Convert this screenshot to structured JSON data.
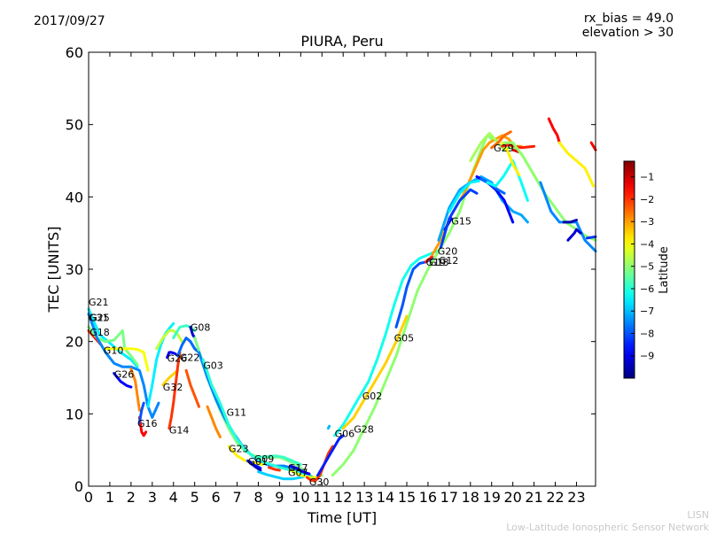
{
  "header": {
    "date": "2017/09/27",
    "rx_bias": "rx_bias = 49.0",
    "elevation": "elevation > 30"
  },
  "footer": {
    "credit_line1": "LISN",
    "credit_line2": "Low-Latitude Ionospheric Sensor Network"
  },
  "chart_data": {
    "type": "scatter",
    "title": "PIURA, Peru",
    "xlabel": "Time [UT]",
    "ylabel": "TEC [UNITS]",
    "xlim": [
      0,
      23.9
    ],
    "ylim": [
      0,
      60
    ],
    "xticks": [
      0,
      1,
      2,
      3,
      4,
      5,
      6,
      7,
      8,
      9,
      10,
      11,
      12,
      13,
      14,
      15,
      16,
      17,
      18,
      19,
      20,
      21,
      22,
      23
    ],
    "yticks": [
      0,
      10,
      20,
      30,
      40,
      50,
      60
    ],
    "colorbar": {
      "label": "Latitude",
      "range": [
        -10,
        -0.3
      ],
      "ticks": [
        -9,
        -8,
        -7,
        -6,
        -5,
        -4,
        -3,
        -2,
        -1
      ],
      "colormap": [
        "#00007f",
        "#0000ff",
        "#007fff",
        "#00ffff",
        "#7fff7f",
        "#ffff00",
        "#ff7f00",
        "#ff0000",
        "#7f0000"
      ]
    },
    "satellite_labels": [
      {
        "name": "G21",
        "x": 0.0,
        "y": 25.5
      },
      {
        "name": "G31",
        "x": 0.0,
        "y": 23.3
      },
      {
        "name": "G25",
        "x": 0.05,
        "y": 23.3
      },
      {
        "name": "G18",
        "x": 0.05,
        "y": 21.3
      },
      {
        "name": "G10",
        "x": 0.7,
        "y": 18.8
      },
      {
        "name": "G26",
        "x": 1.2,
        "y": 15.5
      },
      {
        "name": "G16",
        "x": 2.3,
        "y": 8.7
      },
      {
        "name": "G32",
        "x": 3.5,
        "y": 13.7
      },
      {
        "name": "G14",
        "x": 3.8,
        "y": 7.8
      },
      {
        "name": "G26",
        "x": 3.7,
        "y": 17.7
      },
      {
        "name": "G22",
        "x": 4.3,
        "y": 17.8
      },
      {
        "name": "G08",
        "x": 4.8,
        "y": 22.0
      },
      {
        "name": "G03",
        "x": 5.4,
        "y": 16.7
      },
      {
        "name": "G11",
        "x": 6.5,
        "y": 10.2
      },
      {
        "name": "G23",
        "x": 6.6,
        "y": 5.2
      },
      {
        "name": "G01",
        "x": 7.5,
        "y": 3.4
      },
      {
        "name": "G09",
        "x": 7.8,
        "y": 3.8
      },
      {
        "name": "G17",
        "x": 9.4,
        "y": 2.6
      },
      {
        "name": "G07",
        "x": 9.4,
        "y": 1.9
      },
      {
        "name": "G30",
        "x": 10.4,
        "y": 0.6
      },
      {
        "name": "G06",
        "x": 11.6,
        "y": 7.3
      },
      {
        "name": "G28",
        "x": 12.5,
        "y": 7.9
      },
      {
        "name": "G02",
        "x": 12.9,
        "y": 12.5
      },
      {
        "name": "G05",
        "x": 14.4,
        "y": 20.5
      },
      {
        "name": "G19",
        "x": 15.9,
        "y": 31.0
      },
      {
        "name": "G13",
        "x": 16.05,
        "y": 31.0
      },
      {
        "name": "G12",
        "x": 16.5,
        "y": 31.2
      },
      {
        "name": "G20",
        "x": 16.45,
        "y": 32.5
      },
      {
        "name": "G15",
        "x": 17.1,
        "y": 36.7
      },
      {
        "name": "G29",
        "x": 19.1,
        "y": 46.8
      }
    ],
    "series": [
      {
        "lat": -6.5,
        "x": [
          0.0,
          0.5,
          1.0,
          1.5,
          2.0,
          2.3
        ],
        "y": [
          24.5,
          21.0,
          19.8,
          18.5,
          17.5,
          16.5
        ]
      },
      {
        "lat": -1.8,
        "x": [
          0.0,
          0.3,
          0.6
        ],
        "y": [
          21.5,
          20.5,
          19.5
        ]
      },
      {
        "lat": -5.2,
        "x": [
          0.0,
          0.4,
          0.8,
          1.2,
          1.6,
          1.7,
          2.0,
          2.3
        ],
        "y": [
          22.0,
          20.5,
          20.0,
          20.2,
          21.5,
          19.0,
          18.0,
          16.8
        ]
      },
      {
        "lat": -7.5,
        "x": [
          0.0,
          0.4,
          0.8,
          1.2,
          1.6,
          2.0,
          2.4,
          2.6,
          2.8,
          3.0,
          3.3
        ],
        "y": [
          23.8,
          20.5,
          18.5,
          17.0,
          16.5,
          16.5,
          16.0,
          14.0,
          11.0,
          9.5,
          11.5
        ]
      },
      {
        "lat": -8.8,
        "x": [
          1.2,
          1.5,
          1.8,
          2.0
        ],
        "y": [
          15.6,
          14.5,
          13.9,
          13.7
        ]
      },
      {
        "lat": -4.0,
        "x": [
          0.8,
          1.2,
          1.6,
          2.0,
          2.3,
          2.6,
          2.8
        ],
        "y": [
          19.0,
          19.0,
          19.0,
          19.0,
          18.9,
          18.5,
          16.0
        ]
      },
      {
        "lat": -2.8,
        "x": [
          2.0,
          2.2,
          2.4
        ],
        "y": [
          16.2,
          14.5,
          10.5
        ]
      },
      {
        "lat": -1.5,
        "x": [
          2.4,
          2.5,
          2.6,
          2.7
        ],
        "y": [
          9.5,
          7.5,
          7.0,
          7.5
        ]
      },
      {
        "lat": -8.0,
        "x": [
          2.4,
          2.5,
          2.6
        ],
        "y": [
          8.8,
          10.5,
          11.5
        ]
      },
      {
        "lat": -6.5,
        "x": [
          2.8,
          3.0,
          3.2,
          3.4,
          3.6,
          3.8,
          4.0
        ],
        "y": [
          11.0,
          14.0,
          17.5,
          19.5,
          21.0,
          21.8,
          22.5
        ]
      },
      {
        "lat": -3.5,
        "x": [
          3.5,
          3.8,
          4.0,
          4.2
        ],
        "y": [
          14.0,
          15.0,
          15.5,
          16.0
        ]
      },
      {
        "lat": -2.0,
        "x": [
          3.8,
          3.9,
          4.0,
          4.1,
          4.2,
          4.3
        ],
        "y": [
          8.0,
          9.5,
          11.5,
          14.0,
          16.5,
          18.5
        ]
      },
      {
        "lat": -9.0,
        "x": [
          3.7,
          3.8,
          3.9,
          4.0,
          4.1
        ],
        "y": [
          17.8,
          18.5,
          18.5,
          18.4,
          18.3
        ]
      },
      {
        "lat": -4.5,
        "x": [
          3.2,
          3.5,
          3.8,
          4.0,
          4.2,
          4.4
        ],
        "y": [
          19.0,
          20.5,
          21.5,
          21.5,
          21.0,
          20.0
        ]
      },
      {
        "lat": -5.8,
        "x": [
          4.0,
          4.3,
          4.6,
          4.8,
          5.0
        ],
        "y": [
          20.5,
          22.0,
          22.2,
          22.0,
          21.5
        ]
      },
      {
        "lat": -7.8,
        "x": [
          4.2,
          4.4,
          4.6,
          4.8,
          5.0,
          5.2
        ],
        "y": [
          18.0,
          19.5,
          20.5,
          20.0,
          19.0,
          18.5
        ]
      },
      {
        "lat": -2.3,
        "x": [
          4.6,
          4.8,
          5.0,
          5.2
        ],
        "y": [
          16.0,
          14.0,
          12.5,
          11.0
        ]
      },
      {
        "lat": -9.2,
        "x": [
          4.8,
          4.9,
          5.0
        ],
        "y": [
          22.0,
          21.0,
          20.5
        ]
      },
      {
        "lat": -5.2,
        "x": [
          5.0,
          5.4,
          5.8,
          6.2,
          6.6,
          7.0,
          7.4,
          7.8,
          8.2,
          8.6,
          9.0,
          9.4,
          9.8,
          10.2,
          10.6,
          11.0
        ],
        "y": [
          20.5,
          17.0,
          13.5,
          10.5,
          8.0,
          6.0,
          4.8,
          4.2,
          4.0,
          4.0,
          4.0,
          3.5,
          3.0,
          2.0,
          1.2,
          1.5
        ]
      },
      {
        "lat": -7.5,
        "x": [
          5.2,
          5.6,
          6.0,
          6.4,
          6.8,
          7.2,
          7.6,
          8.0,
          8.4,
          8.8,
          9.2,
          9.6,
          10.0,
          10.4,
          10.8
        ],
        "y": [
          18.5,
          15.0,
          12.0,
          9.5,
          7.5,
          5.8,
          4.5,
          3.5,
          3.0,
          2.8,
          2.8,
          2.5,
          2.0,
          1.4,
          1.0
        ]
      },
      {
        "lat": -6.0,
        "x": [
          5.4,
          5.8,
          6.2,
          6.6,
          7.0,
          7.4,
          7.8,
          8.2,
          8.6,
          9.0,
          9.4,
          9.8,
          10.2
        ],
        "y": [
          17.5,
          14.0,
          11.5,
          8.5,
          6.5,
          5.0,
          4.0,
          3.4,
          3.0,
          2.6,
          2.3,
          2.0,
          1.5
        ]
      },
      {
        "lat": -2.8,
        "x": [
          5.6,
          5.8,
          6.0,
          6.2
        ],
        "y": [
          11.0,
          9.5,
          8.0,
          6.8
        ]
      },
      {
        "lat": -3.8,
        "x": [
          6.6,
          7.0,
          7.4,
          7.8,
          8.2
        ],
        "y": [
          5.5,
          4.2,
          3.5,
          3.2,
          3.0
        ]
      },
      {
        "lat": -8.5,
        "x": [
          7.5,
          7.7,
          7.9,
          8.1
        ],
        "y": [
          3.5,
          3.0,
          2.8,
          2.5
        ]
      },
      {
        "lat": -9.3,
        "x": [
          7.6,
          7.8,
          8.0,
          8.1
        ],
        "y": [
          3.4,
          2.8,
          2.4,
          2.2
        ]
      },
      {
        "lat": -5.8,
        "x": [
          8.0,
          8.4,
          8.8,
          9.2,
          9.6,
          10.0
        ],
        "y": [
          4.0,
          4.1,
          4.2,
          4.0,
          3.5,
          3.0
        ]
      },
      {
        "lat": -6.8,
        "x": [
          8.0,
          8.4,
          8.8,
          9.2,
          9.6,
          10.0,
          10.4
        ],
        "y": [
          2.0,
          1.6,
          1.3,
          1.0,
          1.0,
          1.2,
          1.5
        ]
      },
      {
        "lat": -2.0,
        "x": [
          8.5,
          8.8,
          9.0
        ],
        "y": [
          2.6,
          2.3,
          2.2
        ]
      },
      {
        "lat": -9.0,
        "x": [
          9.5,
          9.8,
          10.1,
          10.4
        ],
        "y": [
          2.8,
          2.5,
          2.0,
          1.7
        ]
      },
      {
        "lat": -4.2,
        "x": [
          9.5,
          10.0,
          10.5,
          10.8
        ],
        "y": [
          2.2,
          1.5,
          1.2,
          1.3
        ]
      },
      {
        "lat": -2.0,
        "x": [
          10.3,
          10.5,
          10.7,
          10.9,
          11.1,
          11.3,
          11.5
        ],
        "y": [
          1.2,
          0.8,
          0.8,
          1.5,
          3.0,
          4.5,
          5.5
        ]
      },
      {
        "lat": -8.5,
        "x": [
          10.8,
          11.0,
          11.2,
          11.4,
          11.6,
          11.8,
          12.0
        ],
        "y": [
          1.5,
          2.5,
          3.5,
          4.5,
          5.5,
          6.5,
          7.0
        ]
      },
      {
        "lat": -7.0,
        "x": [
          11.3,
          11.35
        ],
        "y": [
          8.0,
          8.3
        ]
      },
      {
        "lat": -6.2,
        "x": [
          11.6,
          12.0,
          12.4,
          12.8,
          13.2,
          13.6,
          14.0,
          14.4,
          14.8,
          15.2,
          15.6,
          16.0,
          16.4
        ],
        "y": [
          7.0,
          8.5,
          10.5,
          12.5,
          14.5,
          17.5,
          21.0,
          25.0,
          28.5,
          30.5,
          31.5,
          32.0,
          32.5
        ]
      },
      {
        "lat": -5.0,
        "x": [
          11.5,
          12.0,
          12.5,
          13.0,
          13.5,
          14.0,
          14.5,
          15.0,
          15.5,
          16.0,
          16.5,
          17.0,
          17.5,
          18.0,
          18.5,
          18.8,
          19.0
        ],
        "y": [
          1.5,
          3.0,
          5.0,
          8.0,
          11.0,
          14.5,
          18.0,
          22.5,
          27.0,
          30.0,
          32.5,
          35.0,
          38.0,
          42.5,
          46.5,
          48.5,
          48.0
        ]
      },
      {
        "lat": -3.5,
        "x": [
          12.0,
          12.5,
          13.0,
          13.5,
          14.0,
          14.5,
          15.0
        ],
        "y": [
          8.0,
          9.5,
          12.0,
          14.5,
          17.0,
          20.0,
          23.5
        ]
      },
      {
        "lat": -8.0,
        "x": [
          14.5,
          14.8,
          15.0,
          15.3,
          15.6,
          15.9,
          16.2
        ],
        "y": [
          22.0,
          25.0,
          27.5,
          30.0,
          30.8,
          31.0,
          31.5
        ]
      },
      {
        "lat": -1.8,
        "x": [
          15.9,
          16.0,
          16.1,
          16.2
        ],
        "y": [
          31.0,
          31.3,
          31.5,
          31.8
        ]
      },
      {
        "lat": -3.0,
        "x": [
          16.2,
          16.5,
          16.8,
          17.1,
          17.4,
          17.7,
          18.0,
          18.3,
          18.6,
          18.9,
          19.2,
          19.5,
          19.8,
          20.1,
          20.4
        ],
        "y": [
          32.0,
          33.5,
          35.5,
          37.5,
          39.0,
          40.5,
          42.5,
          44.5,
          46.5,
          47.5,
          48.0,
          48.5,
          48.0,
          47.0,
          47.0
        ]
      },
      {
        "lat": -9.2,
        "x": [
          16.8,
          16.9,
          17.0,
          17.1
        ],
        "y": [
          35.5,
          36.0,
          36.5,
          37.0
        ]
      },
      {
        "lat": -7.2,
        "x": [
          16.5,
          17.0,
          17.5,
          18.0,
          18.5,
          19.0,
          19.5,
          20.0,
          20.4,
          20.7
        ],
        "y": [
          34.0,
          38.5,
          41.0,
          42.0,
          42.8,
          42.0,
          39.5,
          38.0,
          37.5,
          36.5
        ]
      },
      {
        "lat": -8.2,
        "x": [
          16.6,
          17.0,
          17.5,
          18.0,
          18.3
        ],
        "y": [
          33.0,
          37.0,
          39.5,
          41.0,
          40.5
        ]
      },
      {
        "lat": -6.5,
        "x": [
          17.0,
          17.5,
          18.0,
          18.4
        ],
        "y": [
          38.0,
          40.5,
          42.0,
          42.2
        ]
      },
      {
        "lat": -8.8,
        "x": [
          18.3,
          18.8,
          19.2,
          19.6,
          19.8,
          20.0
        ],
        "y": [
          42.8,
          42.0,
          41.0,
          39.5,
          38.0,
          36.5
        ]
      },
      {
        "lat": -7.8,
        "x": [
          18.5,
          18.9,
          19.3,
          19.6
        ],
        "y": [
          42.5,
          41.8,
          41.0,
          40.5
        ]
      },
      {
        "lat": -6.3,
        "x": [
          18.8,
          19.2,
          19.6,
          20.0,
          20.4,
          20.7
        ],
        "y": [
          42.0,
          41.5,
          43.0,
          45.0,
          42.0,
          39.5
        ]
      },
      {
        "lat": -4.8,
        "x": [
          18.0,
          18.5,
          18.9,
          19.3,
          19.6,
          20.0,
          20.4,
          20.8,
          21.2
        ],
        "y": [
          45.0,
          47.5,
          48.8,
          47.5,
          46.5,
          47.0,
          46.0,
          44.0,
          42.0
        ]
      },
      {
        "lat": -2.5,
        "x": [
          19.0,
          19.3,
          19.6,
          19.9
        ],
        "y": [
          46.8,
          47.5,
          48.5,
          49.0
        ]
      },
      {
        "lat": -3.8,
        "x": [
          19.5,
          19.8,
          20.0,
          20.3
        ],
        "y": [
          47.5,
          46.0,
          44.5,
          43.0
        ]
      },
      {
        "lat": -1.8,
        "x": [
          19.5,
          19.8,
          20.1,
          20.4,
          20.7,
          21.0
        ],
        "y": [
          47.0,
          47.2,
          47.0,
          46.8,
          46.9,
          47.0
        ]
      },
      {
        "lat": -1.2,
        "x": [
          20.0,
          20.3
        ],
        "y": [
          46.5,
          46.2
        ]
      },
      {
        "lat": -5.0,
        "x": [
          19.6,
          20.0,
          20.5,
          21.0,
          21.5,
          22.0,
          22.5,
          23.0,
          23.5,
          23.9
        ],
        "y": [
          47.5,
          47.5,
          45.5,
          43.0,
          40.5,
          38.5,
          36.5,
          35.5,
          34.5,
          34.0
        ]
      },
      {
        "lat": -1.5,
        "x": [
          21.7,
          21.9,
          22.1,
          22.2
        ],
        "y": [
          50.8,
          49.5,
          48.5,
          47.5
        ]
      },
      {
        "lat": -3.8,
        "x": [
          22.2,
          22.6,
          23.0,
          23.4,
          23.8
        ],
        "y": [
          47.5,
          46.0,
          45.0,
          44.0,
          41.5
        ]
      },
      {
        "lat": -7.5,
        "x": [
          21.3,
          21.8,
          22.2,
          22.6,
          23.0,
          23.4,
          23.9
        ],
        "y": [
          42.0,
          38.0,
          36.5,
          36.5,
          36.5,
          34.0,
          32.5
        ]
      },
      {
        "lat": -9.2,
        "x": [
          22.6,
          22.9,
          23.0,
          23.2
        ],
        "y": [
          34.0,
          35.0,
          35.5,
          35.0
        ]
      },
      {
        "lat": -9.6,
        "x": [
          22.4,
          22.7,
          23.0
        ],
        "y": [
          36.5,
          36.5,
          36.8
        ]
      },
      {
        "lat": -1.5,
        "x": [
          23.7,
          23.9
        ],
        "y": [
          47.5,
          46.5
        ]
      },
      {
        "lat": -8.3,
        "x": [
          23.5,
          23.9
        ],
        "y": [
          34.3,
          34.5
        ]
      }
    ]
  }
}
